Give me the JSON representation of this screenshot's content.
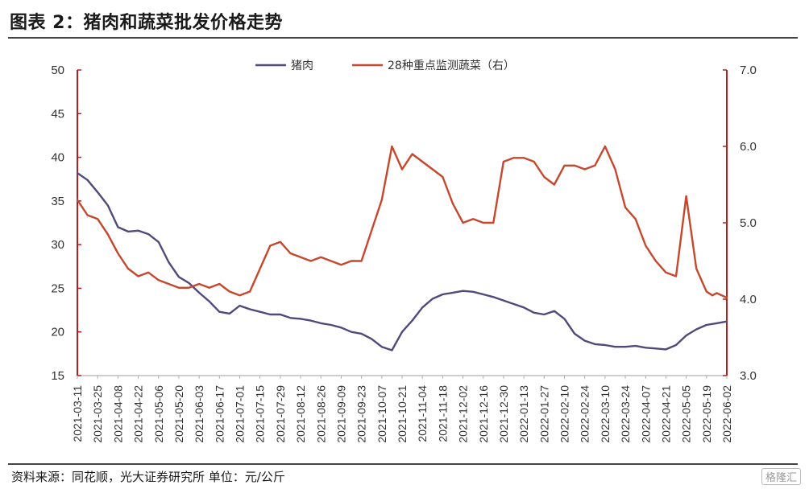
{
  "header": {
    "title": "图表 2：猪肉和蔬菜批发价格走势"
  },
  "footer": {
    "source": "资料来源：同花顺，光大证券研究所 单位：元/公斤",
    "watermark": "格隆汇"
  },
  "colors": {
    "pork": "#4f4a7a",
    "vegetables": "#c6472b",
    "axis": "#b31f1f"
  },
  "chart_data": {
    "type": "line",
    "title": "",
    "x_tick_labels": [
      "2021-03-11",
      "2021-03-25",
      "2021-04-08",
      "2021-04-22",
      "2021-05-06",
      "2021-05-20",
      "2021-06-03",
      "2021-06-17",
      "2021-07-01",
      "2021-07-15",
      "2021-07-29",
      "2021-08-12",
      "2021-08-26",
      "2021-09-09",
      "2021-09-23",
      "2021-10-07",
      "2021-10-21",
      "2021-11-04",
      "2021-11-18",
      "2021-12-02",
      "2021-12-16",
      "2021-12-30",
      "2022-01-13",
      "2022-01-27",
      "2022-02-10",
      "2022-02-24",
      "2022-03-10",
      "2022-03-24",
      "2022-04-07",
      "2022-04-21",
      "2022-05-05",
      "2022-05-19",
      "2022-06-02"
    ],
    "y_left": {
      "min": 15,
      "max": 50,
      "ticks": [
        "15",
        "20",
        "25",
        "30",
        "35",
        "40",
        "45",
        "50"
      ]
    },
    "y_right": {
      "min": 3.0,
      "max": 7.0,
      "ticks": [
        "3.0",
        "4.0",
        "5.0",
        "6.0",
        "7.0"
      ]
    },
    "series": [
      {
        "name": "猪肉",
        "axis": "left",
        "x": [
          "2021-03-11",
          "2021-03-18",
          "2021-03-25",
          "2021-04-01",
          "2021-04-08",
          "2021-04-15",
          "2021-04-22",
          "2021-04-29",
          "2021-05-06",
          "2021-05-13",
          "2021-05-20",
          "2021-05-27",
          "2021-06-03",
          "2021-06-10",
          "2021-06-17",
          "2021-06-24",
          "2021-07-01",
          "2021-07-08",
          "2021-07-15",
          "2021-07-22",
          "2021-07-29",
          "2021-08-05",
          "2021-08-12",
          "2021-08-19",
          "2021-08-26",
          "2021-09-02",
          "2021-09-09",
          "2021-09-16",
          "2021-09-23",
          "2021-09-30",
          "2021-10-07",
          "2021-10-14",
          "2021-10-21",
          "2021-10-28",
          "2021-11-04",
          "2021-11-11",
          "2021-11-18",
          "2021-11-25",
          "2021-12-02",
          "2021-12-09",
          "2021-12-16",
          "2021-12-23",
          "2021-12-30",
          "2022-01-06",
          "2022-01-13",
          "2022-01-20",
          "2022-01-27",
          "2022-02-03",
          "2022-02-10",
          "2022-02-17",
          "2022-02-24",
          "2022-03-03",
          "2022-03-10",
          "2022-03-17",
          "2022-03-24",
          "2022-03-31",
          "2022-04-07",
          "2022-04-14",
          "2022-04-21",
          "2022-04-28",
          "2022-05-05",
          "2022-05-12",
          "2022-05-19",
          "2022-05-26",
          "2022-06-02"
        ],
        "values": [
          38.2,
          37.4,
          36.0,
          34.5,
          32.0,
          31.5,
          31.6,
          31.2,
          30.3,
          28.0,
          26.3,
          25.6,
          24.5,
          23.5,
          22.3,
          22.1,
          23.0,
          22.6,
          22.3,
          22.0,
          22.0,
          21.6,
          21.5,
          21.3,
          21.0,
          20.8,
          20.5,
          20.0,
          19.8,
          19.2,
          18.3,
          17.9,
          20.0,
          21.3,
          22.8,
          23.8,
          24.3,
          24.5,
          24.7,
          24.6,
          24.3,
          24.0,
          23.6,
          23.2,
          22.8,
          22.2,
          22.0,
          22.4,
          21.5,
          19.8,
          19.0,
          18.6,
          18.5,
          18.3,
          18.3,
          18.4,
          18.2,
          18.1,
          18.0,
          18.5,
          19.6,
          20.3,
          20.8,
          21.0,
          21.2
        ]
      },
      {
        "name": "28种重点监测蔬菜（右）",
        "axis": "right",
        "x": [
          "2021-03-11",
          "2021-03-18",
          "2021-03-25",
          "2021-04-01",
          "2021-04-08",
          "2021-04-15",
          "2021-04-22",
          "2021-04-29",
          "2021-05-06",
          "2021-05-13",
          "2021-05-20",
          "2021-05-27",
          "2021-06-03",
          "2021-06-10",
          "2021-06-17",
          "2021-06-24",
          "2021-07-01",
          "2021-07-08",
          "2021-07-15",
          "2021-07-22",
          "2021-07-29",
          "2021-08-05",
          "2021-08-12",
          "2021-08-19",
          "2021-08-26",
          "2021-09-02",
          "2021-09-09",
          "2021-09-16",
          "2021-09-23",
          "2021-09-30",
          "2021-10-07",
          "2021-10-14",
          "2021-10-21",
          "2021-10-28",
          "2021-11-04",
          "2021-11-11",
          "2021-11-18",
          "2021-11-25",
          "2021-12-02",
          "2021-12-09",
          "2021-12-16",
          "2021-12-23",
          "2021-12-30",
          "2022-01-06",
          "2022-01-13",
          "2022-01-20",
          "2022-01-27",
          "2022-02-03",
          "2022-02-10",
          "2022-02-17",
          "2022-02-24",
          "2022-03-03",
          "2022-03-10",
          "2022-03-17",
          "2022-03-24",
          "2022-03-31",
          "2022-04-07",
          "2022-04-14",
          "2022-04-21",
          "2022-04-28",
          "2022-05-05",
          "2022-05-12",
          "2022-05-19",
          "2022-05-23",
          "2022-05-26",
          "2022-06-02"
        ],
        "values": [
          5.3,
          5.1,
          5.05,
          4.85,
          4.6,
          4.4,
          4.3,
          4.35,
          4.25,
          4.2,
          4.15,
          4.15,
          4.2,
          4.15,
          4.2,
          4.1,
          4.05,
          4.1,
          4.4,
          4.7,
          4.75,
          4.6,
          4.55,
          4.5,
          4.55,
          4.5,
          4.45,
          4.5,
          4.5,
          4.9,
          5.3,
          6.0,
          5.7,
          5.9,
          5.8,
          5.7,
          5.6,
          5.25,
          5.0,
          5.05,
          5.0,
          5.0,
          5.8,
          5.85,
          5.85,
          5.8,
          5.6,
          5.5,
          5.75,
          5.75,
          5.7,
          5.75,
          6.0,
          5.7,
          5.2,
          5.05,
          4.7,
          4.5,
          4.35,
          4.3,
          5.35,
          4.4,
          4.1,
          4.05,
          4.08,
          4.02
        ]
      }
    ]
  }
}
